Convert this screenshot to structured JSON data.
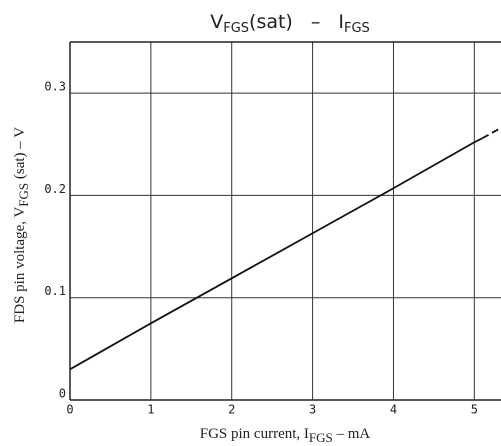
{
  "chart_data": {
    "type": "line",
    "title": [
      "V",
      "FGS",
      "(sat)",
      "–",
      "I",
      "FGS"
    ],
    "y_label": [
      "FDS pin voltage, V",
      "FGS",
      " (sat) – V"
    ],
    "x_label": [
      "FGS pin current, I",
      "FGS",
      " – mA"
    ],
    "xlim": [
      0,
      5.33
    ],
    "ylim": [
      0,
      0.35
    ],
    "xticks": [
      0,
      1,
      2,
      3,
      4,
      5
    ],
    "yticks": [
      0,
      0.1,
      0.2,
      0.3
    ],
    "grid": true,
    "series": [
      {
        "color": "#111111",
        "dashed": false,
        "x": [
          0,
          1,
          2,
          3,
          4,
          5,
          5.1
        ],
        "values": [
          0.03,
          0.075,
          0.119,
          0.163,
          0.207,
          0.252,
          0.256
        ]
      },
      {
        "color": "#111111",
        "dashed": true,
        "x": [
          5.1,
          5.33
        ],
        "values": [
          0.256,
          0.266
        ]
      }
    ]
  }
}
